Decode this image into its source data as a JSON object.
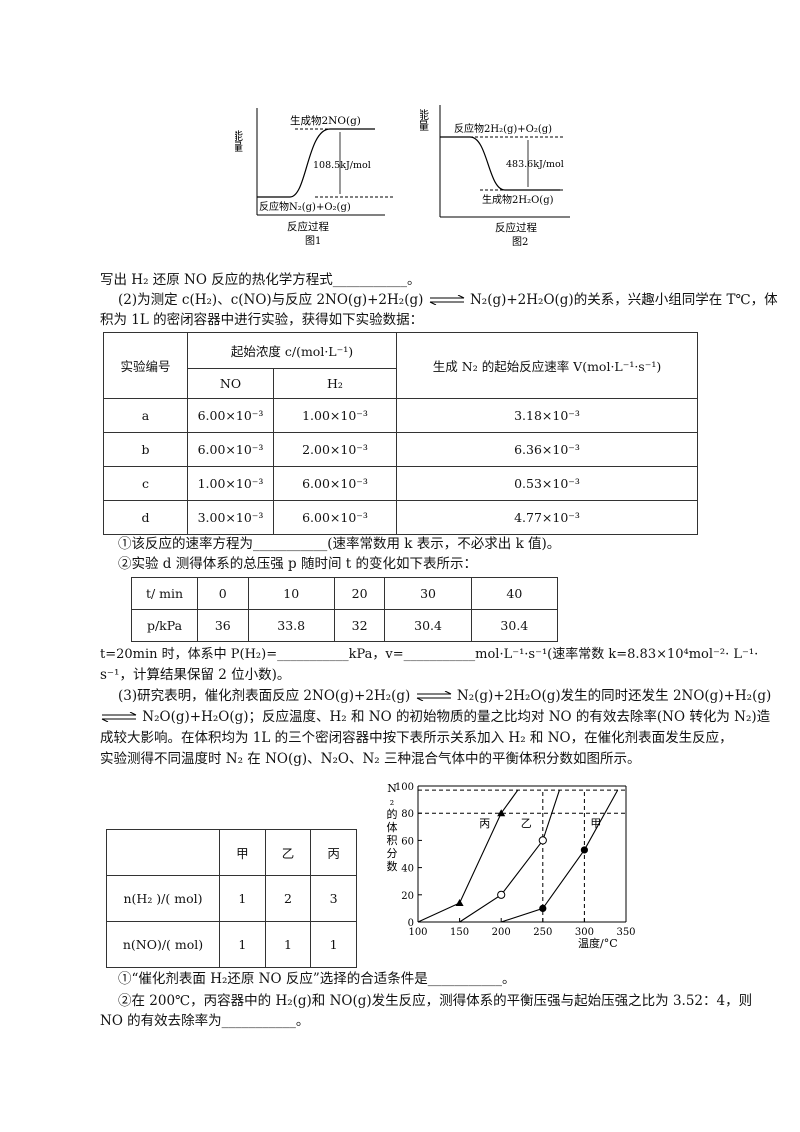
{
  "fig1": {
    "ylabel": "能量",
    "product": "生成物2NO(g)",
    "reactant": "反应物N₂(g)+O₂(g)",
    "delta": "108.5kJ/mol",
    "xlabel": "反应过程",
    "caption": "图1"
  },
  "fig2": {
    "ylabel": "能量",
    "reactant": "反应物2H₂(g)+O₂(g)",
    "product": "生成物2H₂O(g)",
    "delta": "483.6kJ/mol",
    "xlabel": "反应过程",
    "caption": "图2"
  },
  "text": {
    "p1": "写出 H₂ 还原 NO 反应的热化学方程式___________。",
    "p2a": "(2)为测定 c(H₂)、c(NO)与反应 2NO(g)+2H₂(g)",
    "p2b": "N₂(g)+2H₂O(g)的关系，兴趣小组同学在 T℃，体",
    "p2c": "积为 1L 的密闭容器中进行实验，获得如下实验数据：",
    "q1": "①该反应的速率方程为___________(速率常数用 k 表示，不必求出 k 值)。",
    "q2": "②实验 d 测得体系的总压强 p 随时间 t 的变化如下表所示：",
    "p3a": "t=20min 时，体系中 P(H₂)=___________kPa，v=___________mol·L⁻¹·s⁻¹(速率常数 k=8.83×10⁴mol⁻²· L⁻¹·",
    "p3b": "s⁻¹，计算结果保留 2 位小数)。",
    "p4a": "(3)研究表明，催化剂表面反应 2NO(g)+2H₂(g)",
    "p4b": "N₂(g)+2H₂O(g)发生的同时还发生 2NO(g)+H₂(g)",
    "p4c": "N₂O(g)+H₂O(g)；反应温度、H₂ 和 NO 的初始物质的量之比均对 NO 的有效去除率(NO 转化为 N₂)造",
    "p4d": "成较大影响。在体积均为 1L 的三个密闭容器中按下表所示关系加入 H₂ 和 NO，在催化剂表面发生反应，",
    "p4e": "实验测得不同温度时 N₂ 在 NO(g)、N₂O、N₂ 三种混合气体中的平衡体积分数如图所示。",
    "q3": "①“催化剂表面 H₂还原 NO 反应”选择的合适条件是___________。",
    "q4a": "②在 200℃，丙容器中的 H₂(g)和 NO(g)发生反应，测得体系的平衡压强与起始压强之比为 3.52：4，则",
    "q4b": "NO 的有效去除率为___________。"
  },
  "rate_table": {
    "header": [
      "实验编号",
      "起始浓度 c/(mol·L⁻¹)",
      "生成 N₂ 的起始反应速率 V(mol·L⁻¹·s⁻¹)"
    ],
    "subheader": [
      "NO",
      "H₂"
    ],
    "rows": [
      [
        "a",
        "6.00×10⁻³",
        "1.00×10⁻³",
        "3.18×10⁻³"
      ],
      [
        "b",
        "6.00×10⁻³",
        "2.00×10⁻³",
        "6.36×10⁻³"
      ],
      [
        "c",
        "1.00×10⁻³",
        "6.00×10⁻³",
        "0.53×10⁻³"
      ],
      [
        "d",
        "3.00×10⁻³",
        "6.00×10⁻³",
        "4.77×10⁻³"
      ]
    ]
  },
  "pressure_table": {
    "rows": [
      [
        "t/ min",
        "0",
        "10",
        "20",
        "30",
        "40"
      ],
      [
        "p/kPa",
        "36",
        "33.8",
        "32",
        "30.4",
        "30.4"
      ]
    ]
  },
  "amount_table": {
    "header": [
      "",
      "甲",
      "乙",
      "丙"
    ],
    "rows": [
      [
        "n(H₂ )/( mol)",
        "1",
        "2",
        "3"
      ],
      [
        "n(NO)/( mol)",
        "1",
        "1",
        "1"
      ]
    ]
  },
  "chart_data": {
    "type": "line",
    "ylabel": "N₂的体积分数",
    "xlabel": "温度/°C",
    "xlim": [
      100,
      350
    ],
    "ylim": [
      0,
      100
    ],
    "xticks": [
      "100",
      "150",
      "200",
      "250",
      "300",
      "350"
    ],
    "yticks": [
      "0",
      "20",
      "40",
      "60",
      "80",
      "100"
    ],
    "series": [
      {
        "name": "丙",
        "marker": "triangle",
        "points": [
          [
            100,
            0
          ],
          [
            150,
            14
          ],
          [
            200,
            80
          ],
          [
            220,
            97
          ]
        ],
        "marked": [
          [
            150,
            14
          ],
          [
            200,
            80
          ]
        ]
      },
      {
        "name": "乙",
        "marker": "open-circle",
        "points": [
          [
            150,
            0
          ],
          [
            200,
            20
          ],
          [
            250,
            60
          ],
          [
            270,
            97
          ]
        ],
        "marked": [
          [
            200,
            20
          ],
          [
            250,
            60
          ]
        ]
      },
      {
        "name": "甲",
        "marker": "filled-circle",
        "points": [
          [
            200,
            0
          ],
          [
            250,
            10
          ],
          [
            300,
            53
          ],
          [
            340,
            97
          ]
        ],
        "marked": [
          [
            250,
            10
          ],
          [
            300,
            53
          ]
        ]
      }
    ],
    "reference": {
      "y": [
        80,
        97
      ],
      "x": [
        250,
        300
      ]
    }
  }
}
